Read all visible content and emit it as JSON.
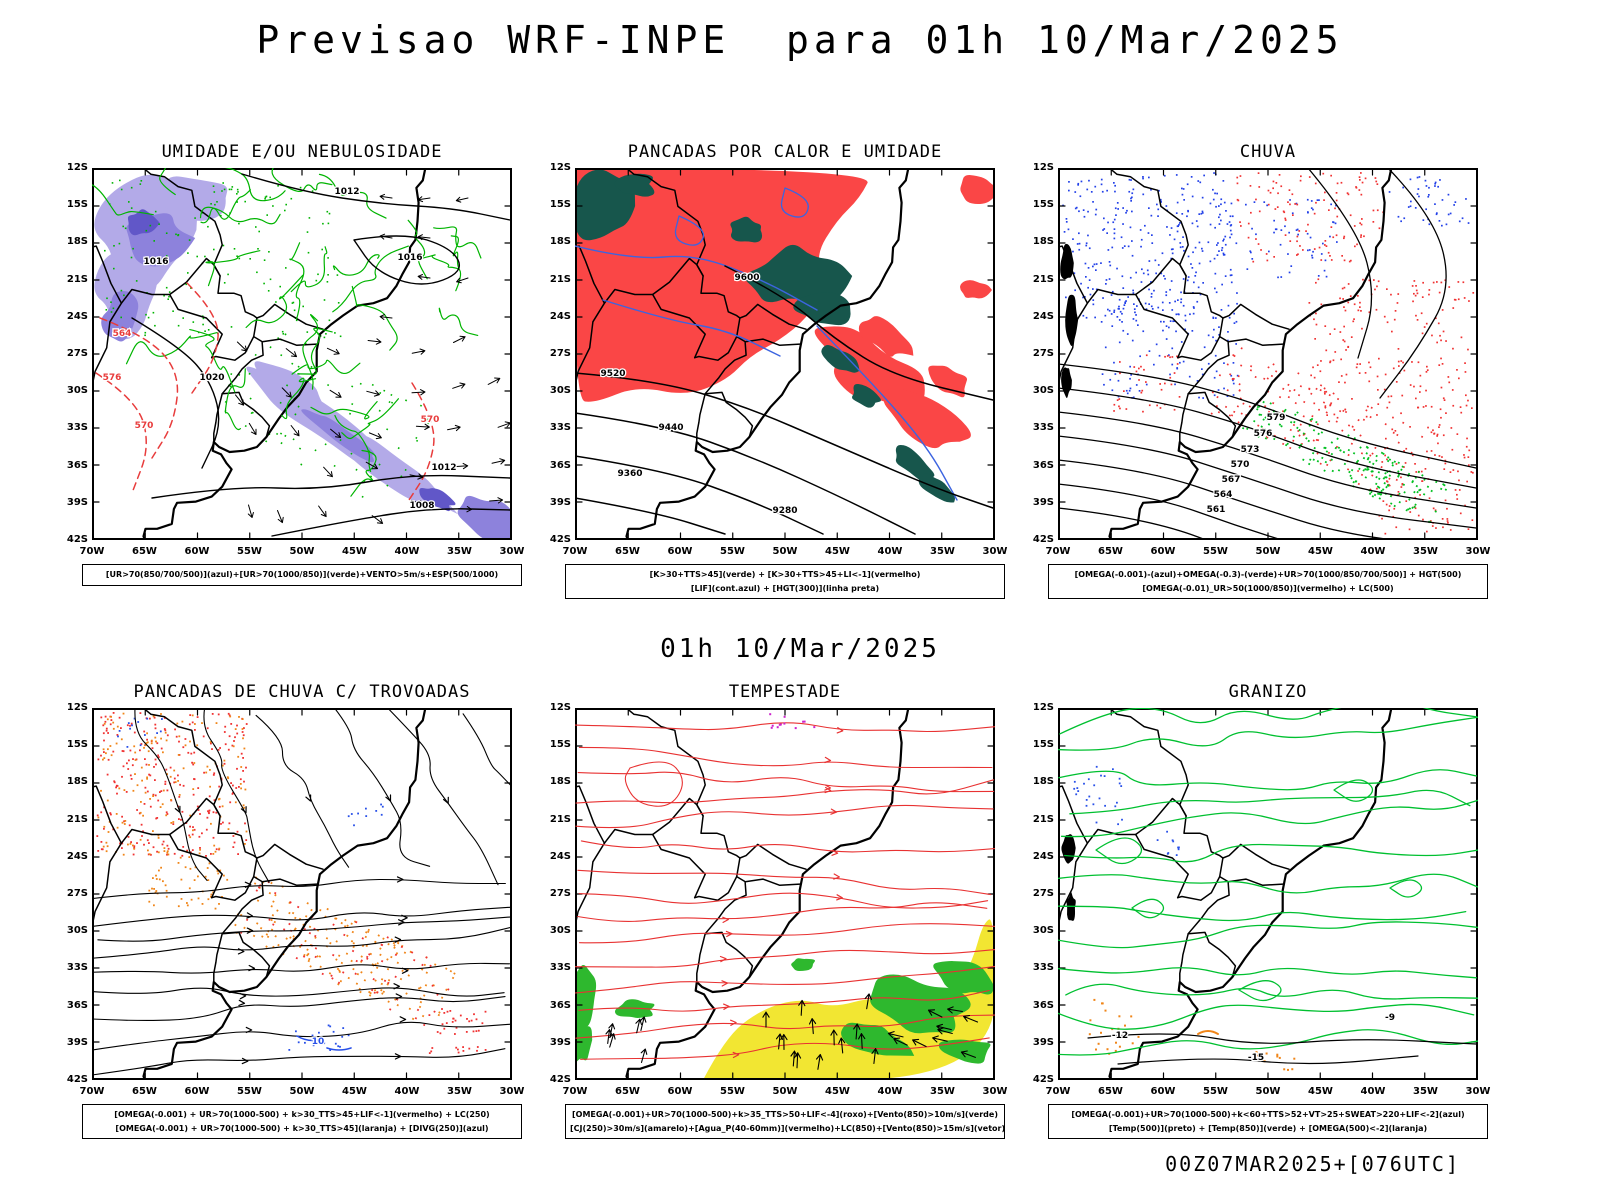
{
  "page": {
    "title": "Previsao WRF-INPE  para 01h 10/Mar/2025",
    "run_label": "01h 10/Mar/2025",
    "footer": "00Z07MAR2025+[076UTC]"
  },
  "axes": {
    "lat": [
      "12S",
      "15S",
      "18S",
      "21S",
      "24S",
      "27S",
      "30S",
      "33S",
      "36S",
      "39S",
      "42S"
    ],
    "lon": [
      "70W",
      "65W",
      "60W",
      "55W",
      "50W",
      "45W",
      "40W",
      "35W",
      "30W"
    ]
  },
  "colors": {
    "azul": "#2341e8",
    "verde": "#00b400",
    "verde_escuro": "#17564c",
    "vermelho": "#f03232",
    "laranja": "#f08518",
    "amarelo": "#f2e632",
    "roxo": "#cc22cc",
    "preto": "#000000"
  },
  "panels": [
    {
      "id": "umidade",
      "title": "UMIDADE E/OU NEBULOSIDADE",
      "caption": [
        "[UR>70(850/700/500)](azul)+[UR>70(1000/850)](verde)+VENTO>5m/s+ESP(500/1000)"
      ],
      "contour_labels": [
        "1012",
        "1016",
        "1020",
        "1016",
        "1012",
        "1008",
        "576",
        "570",
        "564",
        "570"
      ]
    },
    {
      "id": "pancadas-calor",
      "title": "PANCADAS POR CALOR E UMIDADE",
      "caption": [
        "[K>30+TTS>45](verde) + [K>30+TTS>45+LI<-1](vermelho)",
        "[LIF](cont.azul) + [HGT(300)](linha preta)"
      ],
      "contour_labels": [
        "9600",
        "9520",
        "9440",
        "9360",
        "9280"
      ]
    },
    {
      "id": "chuva",
      "title": "CHUVA",
      "caption": [
        "[OMEGA(-0.001)-(azul)+OMEGA(-0.3)-(verde)+UR>70(1000/850/700/500)] + HGT(500)",
        "[OMEGA(-0.01)_UR>50(1000/850)](vermelho) + LC(500)"
      ],
      "contour_labels": [
        "579",
        "576",
        "573",
        "570",
        "567",
        "564",
        "561"
      ]
    },
    {
      "id": "trovoadas",
      "title": "PANCADAS DE CHUVA C/ TROVOADAS",
      "caption": [
        "[OMEGA(-0.001) + UR>70(1000-500) + k>30_TTS>45+LIF<-1](vermelho) + LC(250)",
        "[OMEGA(-0.001) + UR>70(1000-500) + k>30_TTS>45](laranja) + [DIVG(250)](azul)"
      ],
      "contour_labels": [
        "10"
      ]
    },
    {
      "id": "tempestade",
      "title": "TEMPESTADE",
      "caption": [
        "[OMEGA(-0.001)+UR>70(1000-500)+k>35_TTS>50+LIF<-4](roxo)+[Vento(850)>10m/s](verde)",
        "[CJ(250)>30m/s](amarelo)+[Agua_P(40-60mm)](vermelho)+LC(850)+[Vento(850)>15m/s](vetor)"
      ],
      "contour_labels": []
    },
    {
      "id": "granizo",
      "title": "GRANIZO",
      "caption": [
        "[OMEGA(-0.001)+UR>70(1000-500)+k<60+TTS>52+VT>25+SWEAT>220+LIF<-2](azul)",
        "[Temp(500)](preto) + [Temp(850)](verde) + [OMEGA(500)<-2](laranja)"
      ],
      "contour_labels": [
        "-12",
        "-15",
        "-9"
      ]
    }
  ]
}
